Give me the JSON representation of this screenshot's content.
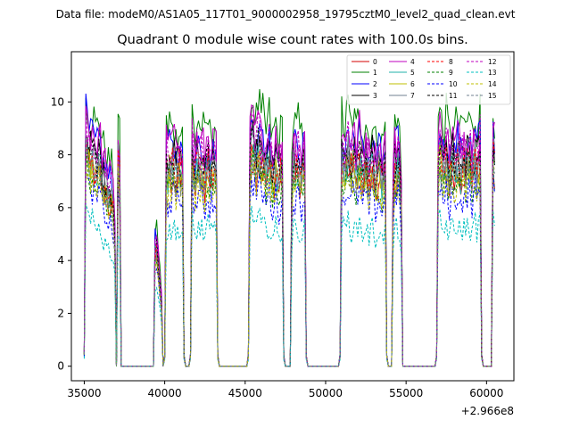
{
  "chart_data": {
    "type": "line",
    "suptitle": "Data file: modeM0/AS1A05_117T01_9000002958_19795cztM0_level2_quad_clean.evt",
    "title": "Quadrant 0 module wise count rates with 100.0s bins.",
    "xlabel": "",
    "ylabel": "",
    "x_offset_label": "+2.966e8",
    "xlim": [
      34200,
      61700
    ],
    "ylim": [
      -0.55,
      11.9
    ],
    "x_ticks": [
      35000,
      40000,
      45000,
      50000,
      55000,
      60000
    ],
    "x_tick_labels": [
      "35000",
      "40000",
      "45000",
      "50000",
      "55000",
      "60000"
    ],
    "y_ticks": [
      0,
      2,
      4,
      6,
      8,
      10
    ],
    "y_tick_labels": [
      "0",
      "2",
      "4",
      "6",
      "8",
      "10"
    ],
    "grid": false,
    "legend_position": "top-right",
    "segments": [
      {
        "start": 35000,
        "end": 36950,
        "shape": [
          1.13,
          1.09,
          1.05,
          1.0,
          0.99,
          1.02,
          0.98,
          0.93,
          0.96,
          1.0,
          0.95,
          0.9,
          0.86,
          0.88,
          0.84,
          0.8,
          0.82,
          0.78,
          0.74,
          0.72
        ]
      },
      {
        "start": 37050,
        "end": 37250,
        "shape": [
          0.98,
          1.0,
          0.82
        ]
      },
      {
        "start": 39400,
        "end": 39800,
        "shape": [
          0.55,
          0.56,
          0.48,
          0.38,
          0.3
        ]
      },
      {
        "start": 40000,
        "end": 41200,
        "shape": [
          0.9,
          0.96,
          0.92,
          0.98,
          0.94,
          1.0,
          0.95,
          0.9,
          0.95,
          0.98,
          0.92,
          0.96,
          0.94
        ]
      },
      {
        "start": 41600,
        "end": 43300,
        "shape": [
          0.98,
          1.02,
          0.95,
          0.9,
          0.96,
          0.99,
          0.93,
          0.97,
          0.94,
          0.9,
          0.95,
          0.98,
          0.92,
          0.96,
          0.93,
          0.97,
          0.95,
          0.9
        ]
      },
      {
        "start": 45200,
        "end": 47400,
        "shape": [
          0.95,
          1.0,
          1.04,
          1.06,
          1.02,
          0.98,
          1.05,
          1.02,
          0.97,
          1.0,
          0.96,
          0.93,
          0.97,
          1.0,
          0.94,
          0.9,
          0.94,
          0.97,
          0.92,
          0.89,
          0.93,
          0.95,
          0.9
        ]
      },
      {
        "start": 47850,
        "end": 48800,
        "shape": [
          0.96,
          1.0,
          0.97,
          0.93,
          0.98,
          0.95,
          0.9,
          0.94,
          0.97,
          0.92
        ]
      },
      {
        "start": 50900,
        "end": 53800,
        "shape": [
          0.98,
          1.02,
          0.97,
          0.94,
          0.99,
          1.03,
          0.98,
          0.95,
          1.0,
          0.97,
          0.93,
          0.98,
          1.01,
          0.96,
          0.92,
          0.95,
          0.99,
          0.94,
          0.9,
          0.94,
          0.97,
          0.93,
          0.89,
          0.93,
          0.96,
          0.92,
          0.88,
          0.92,
          0.95,
          0.9
        ]
      },
      {
        "start": 54150,
        "end": 54750,
        "shape": [
          1.0,
          0.97,
          0.93,
          0.98,
          0.95,
          0.92,
          0.96
        ]
      },
      {
        "start": 56900,
        "end": 59700,
        "shape": [
          0.95,
          0.98,
          1.02,
          0.97,
          0.93,
          0.97,
          1.0,
          0.95,
          0.91,
          0.95,
          0.98,
          0.93,
          0.96,
          1.0,
          0.96,
          0.92,
          0.96,
          0.99,
          0.94,
          0.97,
          1.01,
          0.96,
          0.93,
          0.97,
          1.0,
          0.95,
          0.98,
          1.02,
          0.97
        ]
      },
      {
        "start": 60350,
        "end": 60550,
        "shape": [
          1.0,
          1.04,
          0.95
        ]
      }
    ],
    "series": [
      {
        "name": "0",
        "color": "#d40000",
        "dashed": false,
        "level": 7.4
      },
      {
        "name": "1",
        "color": "#008000",
        "dashed": false,
        "level": 9.5
      },
      {
        "name": "2",
        "color": "#0000ff",
        "dashed": false,
        "level": 8.7
      },
      {
        "name": "3",
        "color": "#000000",
        "dashed": false,
        "level": 8.3
      },
      {
        "name": "4",
        "color": "#bf00bf",
        "dashed": false,
        "level": 8.9
      },
      {
        "name": "5",
        "color": "#20b2aa",
        "dashed": false,
        "level": 7.7
      },
      {
        "name": "6",
        "color": "#bfbf00",
        "dashed": false,
        "level": 7.6
      },
      {
        "name": "7",
        "color": "#708090",
        "dashed": false,
        "level": 7.9
      },
      {
        "name": "8",
        "color": "#ff0000",
        "dashed": true,
        "level": 7.8
      },
      {
        "name": "9",
        "color": "#008000",
        "dashed": true,
        "level": 7.2
      },
      {
        "name": "10",
        "color": "#0000ff",
        "dashed": true,
        "level": 6.6
      },
      {
        "name": "11",
        "color": "#000000",
        "dashed": true,
        "level": 8.0
      },
      {
        "name": "12",
        "color": "#bf00bf",
        "dashed": true,
        "level": 8.6
      },
      {
        "name": "13",
        "color": "#00bfbf",
        "dashed": true,
        "level": 5.4
      },
      {
        "name": "14",
        "color": "#bfbf00",
        "dashed": true,
        "level": 7.1
      },
      {
        "name": "15",
        "color": "#708090",
        "dashed": true,
        "level": 7.5
      }
    ]
  }
}
